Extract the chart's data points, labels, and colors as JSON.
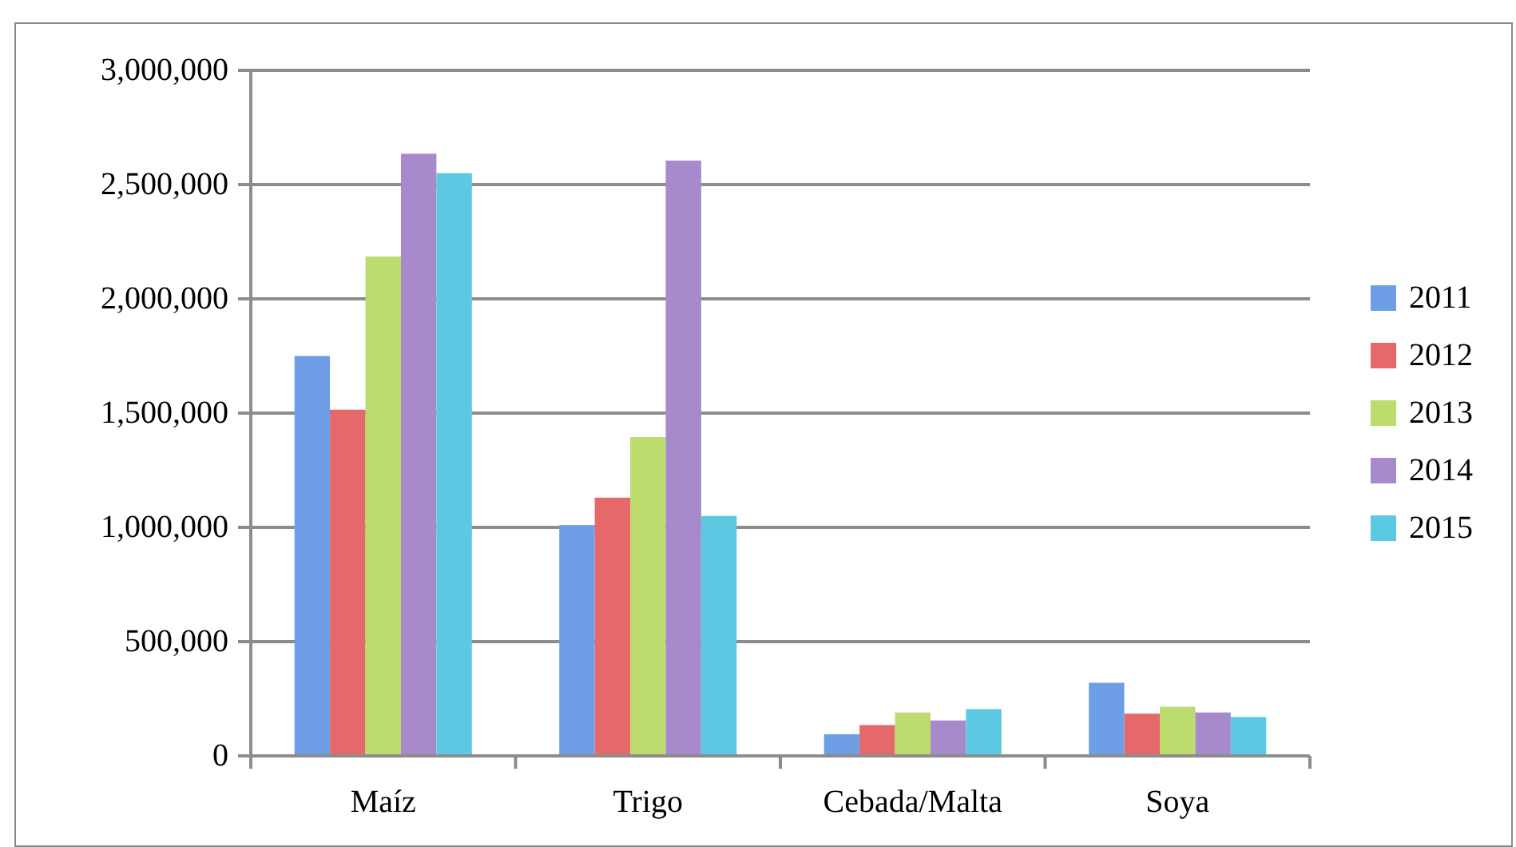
{
  "chart_data": {
    "type": "bar",
    "categories": [
      "Maíz",
      "Trigo",
      "Cebada/Malta",
      "Soya"
    ],
    "series": [
      {
        "name": "2011",
        "color": "#6e9fe6",
        "values": [
          1750000,
          1010000,
          95000,
          320000
        ]
      },
      {
        "name": "2012",
        "color": "#e5686a",
        "values": [
          1515000,
          1130000,
          135000,
          185000
        ]
      },
      {
        "name": "2013",
        "color": "#bcdc6e",
        "values": [
          2185000,
          1395000,
          190000,
          215000
        ]
      },
      {
        "name": "2014",
        "color": "#a78acb",
        "values": [
          2635000,
          2605000,
          155000,
          190000
        ]
      },
      {
        "name": "2015",
        "color": "#5cc9e3",
        "values": [
          2550000,
          1050000,
          205000,
          170000
        ]
      }
    ],
    "ylim": [
      0,
      3000000
    ],
    "yticks": [
      {
        "value": 0,
        "label": "0"
      },
      {
        "value": 500000,
        "label": "500,000"
      },
      {
        "value": 1000000,
        "label": "1,000,000"
      },
      {
        "value": 1500000,
        "label": "1,500,000"
      },
      {
        "value": 2000000,
        "label": "2,000,000"
      },
      {
        "value": 2500000,
        "label": "2,500,000"
      },
      {
        "value": 3000000,
        "label": "3,000,000"
      }
    ],
    "grid": "y",
    "legend": "right"
  }
}
